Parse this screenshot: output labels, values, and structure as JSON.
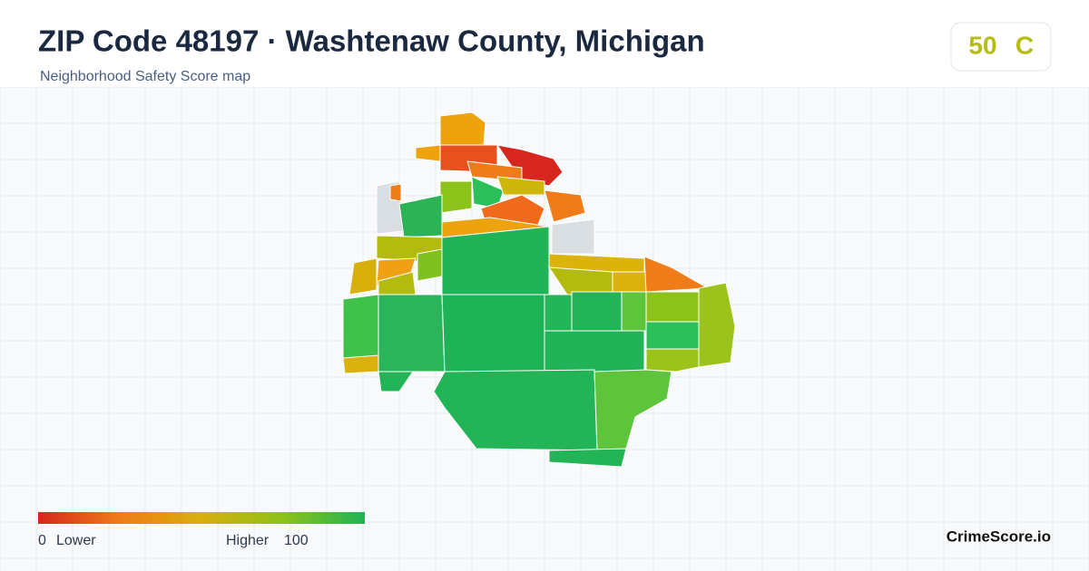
{
  "header": {
    "title": "ZIP Code 48197 · Washtenaw County, Michigan",
    "subtitle": "Neighborhood Safety Score map"
  },
  "score": {
    "value": "50",
    "grade": "C"
  },
  "legend": {
    "min": "0",
    "min_label": "Lower",
    "max_label": "Higher",
    "max": "100"
  },
  "brand": "CrimeScore.io"
}
